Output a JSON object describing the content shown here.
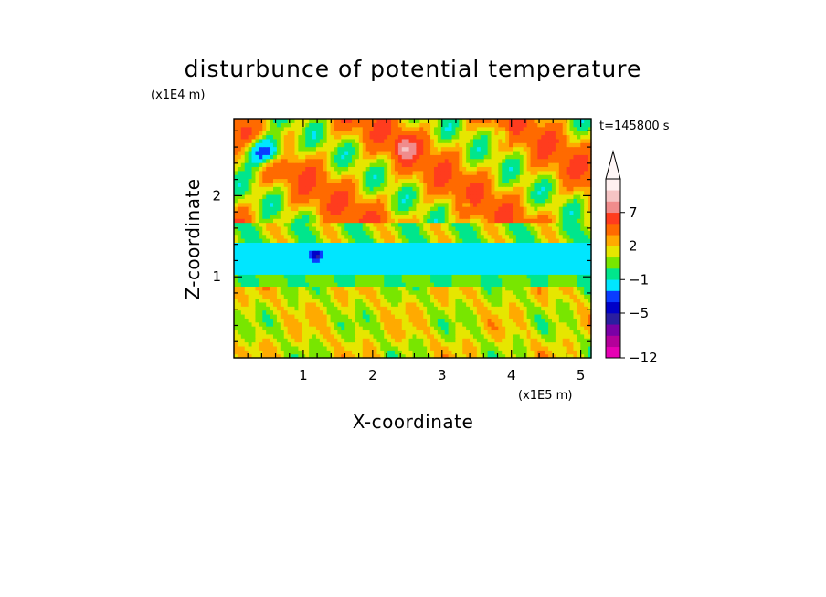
{
  "chart_data": {
    "type": "heatmap",
    "title": "disturbunce of potential temperature",
    "xlabel": "X-coordinate",
    "ylabel": "Z-coordinate",
    "x_unit": "(x1E5 m)",
    "y_unit": "(x1E4 m)",
    "time_label": "t=145800 s",
    "xlim": [
      0,
      5.15
    ],
    "ylim": [
      0,
      2.95
    ],
    "x_ticks": [
      1,
      2,
      3,
      4,
      5
    ],
    "y_ticks": [
      1,
      2
    ],
    "colorbar": {
      "levels": [
        -12,
        -11,
        -9,
        -7,
        -5,
        -4,
        -3,
        -1,
        0,
        1,
        2,
        3,
        5,
        7,
        9,
        11
      ],
      "colors": [
        "#e600b4",
        "#b4009a",
        "#7a00a6",
        "#2a1ea0",
        "#0000c8",
        "#0a3cff",
        "#00e6ff",
        "#00e68c",
        "#78e600",
        "#e6e600",
        "#ffaa00",
        "#ff6a00",
        "#ff3c1e",
        "#f08c8c",
        "#f5c4c4",
        "#fff0f0"
      ],
      "labels": [
        {
          "value": -12,
          "text": "-12"
        },
        {
          "value": -5,
          "text": "-5"
        },
        {
          "value": -1,
          "text": "-1"
        },
        {
          "value": 2,
          "text": "2"
        },
        {
          "value": 7,
          "text": "7"
        }
      ],
      "extend": "max"
    }
  }
}
